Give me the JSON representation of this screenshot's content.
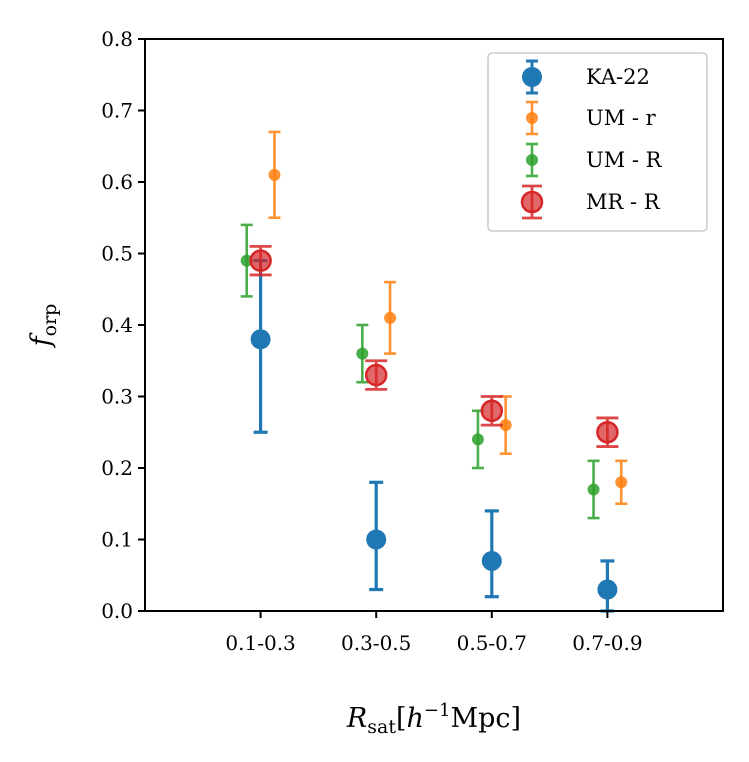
{
  "chart_data": {
    "type": "scatter",
    "title": "",
    "xlabel_parts": {
      "base": "R",
      "sub": "sat",
      "bracket_open": "[",
      "h": "h",
      "exp": "−1",
      "unit": "Mpc",
      "bracket_close": "]"
    },
    "ylabel_parts": {
      "base": "f",
      "sub": "orp"
    },
    "categories": [
      "0.1-0.3",
      "0.3-0.5",
      "0.5-0.7",
      "0.7-0.9"
    ],
    "ylim": [
      0.0,
      0.8
    ],
    "yticks": [
      0.0,
      0.1,
      0.2,
      0.3,
      0.4,
      0.5,
      0.6,
      0.7,
      0.8
    ],
    "ytick_labels": [
      "0.0",
      "0.1",
      "0.2",
      "0.3",
      "0.4",
      "0.5",
      "0.6",
      "0.7",
      "0.8"
    ],
    "grid": false,
    "legend_position": "top-right",
    "series": [
      {
        "name": "KA-22",
        "color": "#1f77b4",
        "marker": "large",
        "offset": 0.0,
        "values": [
          0.38,
          0.1,
          0.07,
          0.03
        ],
        "lower": [
          0.25,
          0.03,
          0.02,
          0.0
        ],
        "upper": [
          0.49,
          0.18,
          0.14,
          0.07
        ]
      },
      {
        "name": "UM - r",
        "color": "#ff7f0e",
        "marker": "small",
        "offset": 0.12,
        "values": [
          0.61,
          0.41,
          0.26,
          0.18
        ],
        "lower": [
          0.55,
          0.36,
          0.22,
          0.15
        ],
        "upper": [
          0.67,
          0.46,
          0.3,
          0.21
        ]
      },
      {
        "name": "UM - R",
        "color": "#2ca02c",
        "marker": "small",
        "offset": -0.12,
        "values": [
          0.49,
          0.36,
          0.24,
          0.17
        ],
        "lower": [
          0.44,
          0.32,
          0.2,
          0.13
        ],
        "upper": [
          0.54,
          0.4,
          0.28,
          0.21
        ]
      },
      {
        "name": "MR - R",
        "color": "#d62728",
        "marker": "ring",
        "offset": 0.0,
        "values": [
          0.49,
          0.33,
          0.28,
          0.25
        ],
        "lower": [
          0.47,
          0.31,
          0.26,
          0.23
        ],
        "upper": [
          0.51,
          0.35,
          0.3,
          0.27
        ]
      }
    ]
  }
}
